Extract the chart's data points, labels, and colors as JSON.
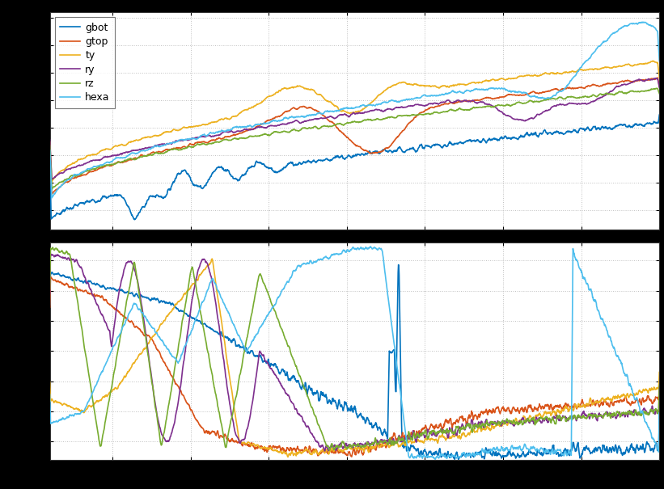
{
  "labels": [
    "gbot",
    "gtop",
    "ty",
    "ry",
    "rz",
    "hexa"
  ],
  "colors": [
    "#0072BD",
    "#D95319",
    "#EDB120",
    "#7E2F8E",
    "#77AC30",
    "#4DBEEE"
  ],
  "fig_width": 8.21,
  "fig_height": 6.05,
  "dpi": 100,
  "background_color": "#000000",
  "plot_bg": "#ffffff",
  "grid_color": "#c0c0c0",
  "grid_style": ":",
  "linewidth": 1.2
}
